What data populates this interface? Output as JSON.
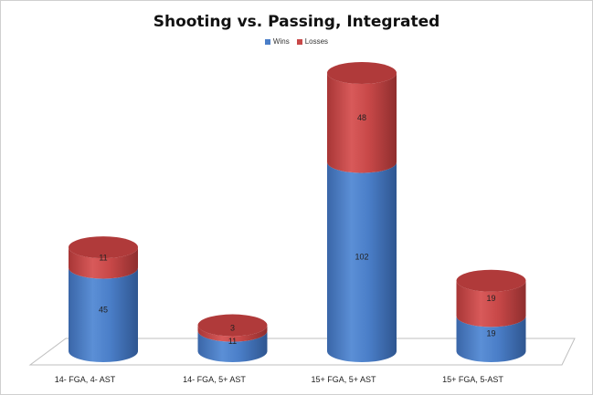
{
  "chart_data": {
    "type": "bar",
    "stacked": true,
    "style": "3d-cylinder",
    "title": "Shooting vs. Passing, Integrated",
    "xlabel": "",
    "ylabel": "",
    "ylim": [
      0,
      155
    ],
    "legend_position": "top-center",
    "grid": false,
    "categories": [
      "14- FGA, 4- AST",
      "14- FGA, 5+ AST",
      "15+ FGA, 5+ AST",
      "15+ FGA, 5-AST"
    ],
    "series": [
      {
        "name": "Wins",
        "values": [
          45,
          11,
          102,
          19
        ],
        "color": "#4a7ec8"
      },
      {
        "name": "Losses",
        "values": [
          11,
          3,
          48,
          19
        ],
        "color": "#c84848"
      }
    ]
  }
}
